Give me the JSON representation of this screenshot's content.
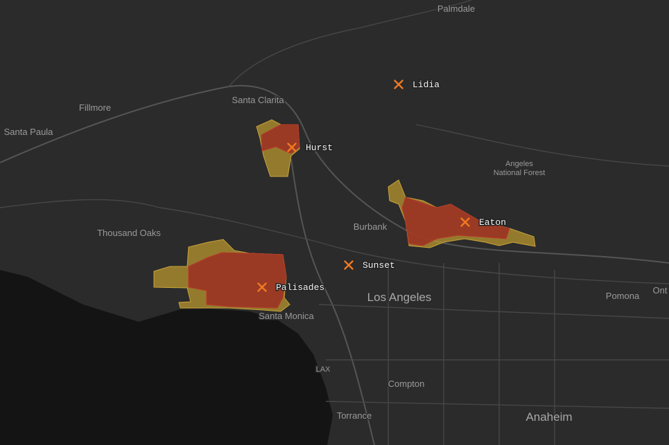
{
  "places": [
    {
      "name": "Palmdale"
    },
    {
      "name": "Fillmore"
    },
    {
      "name": "Santa Clarita"
    },
    {
      "name": "Santa Paula"
    },
    {
      "lines": [
        "Angeles",
        "National Forest"
      ]
    },
    {
      "name": "Burbank"
    },
    {
      "name": "Thousand Oaks"
    },
    {
      "name": "Los Angeles"
    },
    {
      "name": "Pomona"
    },
    {
      "name": "Ont"
    },
    {
      "name": "Santa Monica"
    },
    {
      "name": "LAX"
    },
    {
      "name": "Compton"
    },
    {
      "name": "Torrance"
    },
    {
      "name": "Anaheim"
    }
  ],
  "fires": [
    {
      "name": "Lidia"
    },
    {
      "name": "Hurst"
    },
    {
      "name": "Eaton"
    },
    {
      "name": "Sunset"
    },
    {
      "name": "Palisades"
    }
  ]
}
